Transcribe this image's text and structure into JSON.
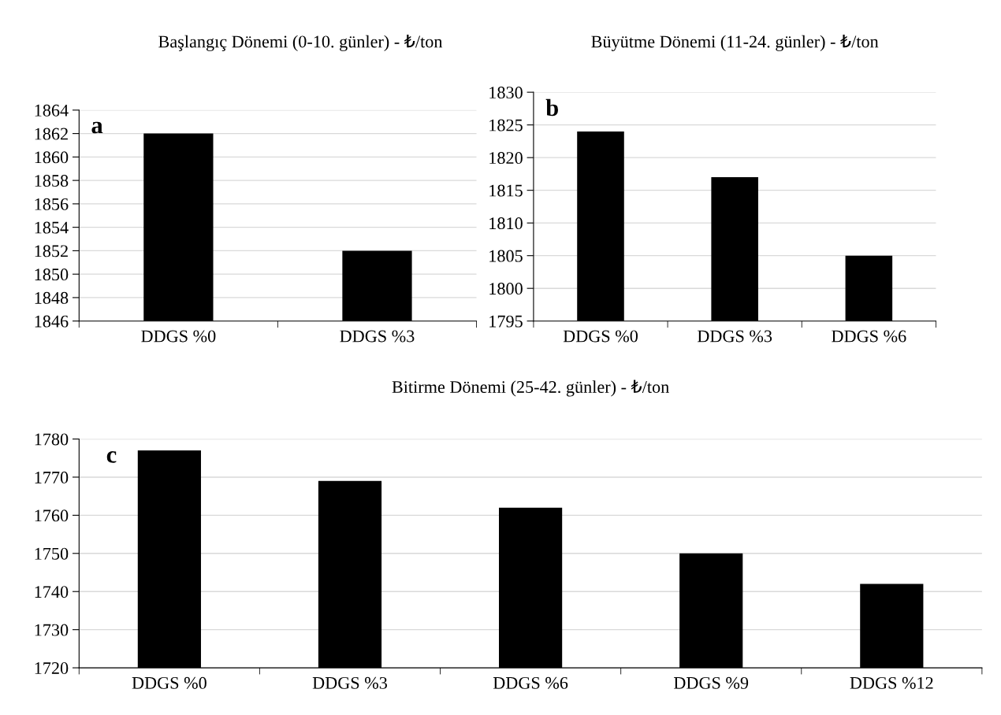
{
  "chart_data": [
    {
      "type": "bar",
      "title": "Başlangıç Dönemi (0-10. günler) - ₺/ton",
      "categories": [
        "DDGS %0",
        "DDGS %3"
      ],
      "values": [
        1862,
        1852
      ],
      "color": "#000000",
      "ylim": [
        1846,
        1864
      ],
      "yticks": [
        1846,
        1848,
        1850,
        1852,
        1854,
        1856,
        1858,
        1860,
        1862,
        1864
      ],
      "grid": "y",
      "annotations": [
        "a"
      ]
    },
    {
      "type": "bar",
      "title": "Büyütme Dönemi (11-24. günler) - ₺/ton",
      "categories": [
        "DDGS %0",
        "DDGS %3",
        "DDGS %6"
      ],
      "values": [
        1824,
        1817,
        1805
      ],
      "color": "#000000",
      "ylim": [
        1795,
        1830
      ],
      "yticks": [
        1795,
        1800,
        1805,
        1810,
        1815,
        1820,
        1825,
        1830
      ],
      "grid": "y",
      "annotations": [
        "b"
      ]
    },
    {
      "type": "bar",
      "title": "Bitirme Dönemi (25-42. günler) - ₺/ton",
      "categories": [
        "DDGS %0",
        "DDGS %3",
        "DDGS %6",
        "DDGS %9",
        "DDGS %12"
      ],
      "values": [
        1777,
        1769,
        1762,
        1750,
        1742
      ],
      "color": "#000000",
      "ylim": [
        1720,
        1780
      ],
      "yticks": [
        1720,
        1730,
        1740,
        1750,
        1760,
        1770,
        1780
      ],
      "grid": "y",
      "annotations": [
        "c"
      ]
    }
  ]
}
